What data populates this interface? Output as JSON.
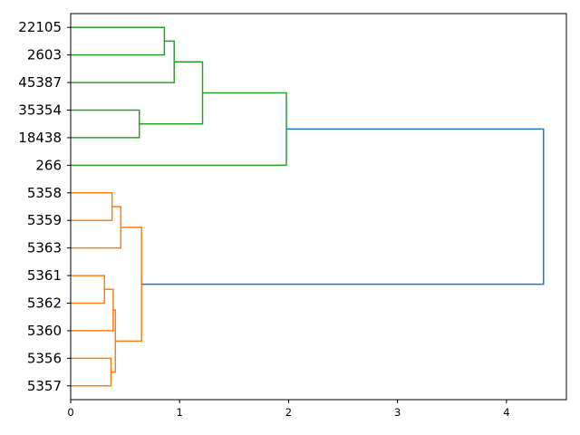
{
  "chart_data": {
    "type": "dendrogram",
    "orientation": "horizontal",
    "leaves": [
      "22105",
      "2603",
      "45387",
      "35354",
      "18438",
      "266",
      "5358",
      "5359",
      "5363",
      "5361",
      "5362",
      "5360",
      "5356",
      "5357"
    ],
    "xlim": [
      0,
      4.55
    ],
    "x_ticks": [
      0,
      1,
      2,
      3,
      4
    ],
    "links": [
      {
        "a": "22105",
        "b": "2603",
        "height": 0.86,
        "color": "#2ca02c"
      },
      {
        "a": "L0",
        "b": "45387",
        "height": 0.95,
        "color": "#2ca02c"
      },
      {
        "a": "35354",
        "b": "18438",
        "height": 0.63,
        "color": "#2ca02c"
      },
      {
        "a": "L1",
        "b": "L2",
        "height": 1.21,
        "color": "#2ca02c"
      },
      {
        "a": "L3",
        "b": "266",
        "height": 1.98,
        "color": "#2ca02c"
      },
      {
        "a": "5358",
        "b": "5359",
        "height": 0.38,
        "color": "#ff7f0e"
      },
      {
        "a": "L5",
        "b": "5363",
        "height": 0.46,
        "color": "#ff7f0e"
      },
      {
        "a": "5361",
        "b": "5362",
        "height": 0.31,
        "color": "#ff7f0e"
      },
      {
        "a": "L7",
        "b": "5360",
        "height": 0.39,
        "color": "#ff7f0e"
      },
      {
        "a": "5356",
        "b": "5357",
        "height": 0.37,
        "color": "#ff7f0e"
      },
      {
        "a": "L8",
        "b": "L9",
        "height": 0.41,
        "color": "#ff7f0e"
      },
      {
        "a": "L6",
        "b": "L10",
        "height": 0.65,
        "color": "#ff7f0e"
      },
      {
        "a": "L4",
        "b": "L11",
        "height": 4.34,
        "color": "#1f77b4"
      }
    ]
  }
}
